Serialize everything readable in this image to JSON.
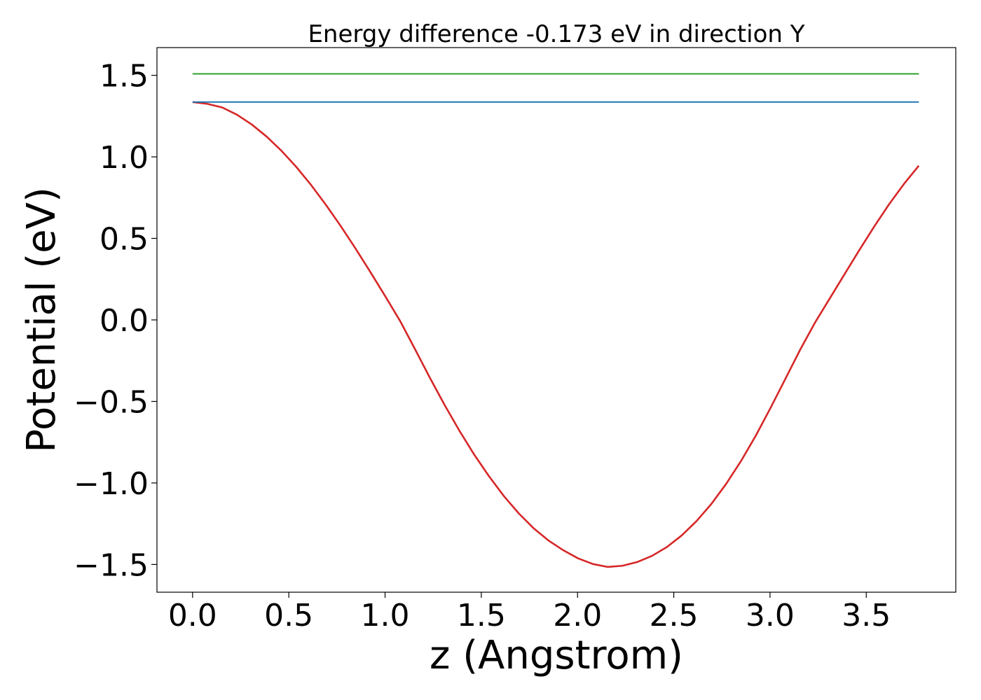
{
  "chart_data": {
    "type": "line",
    "title": "Energy difference -0.173 eV in direction Y",
    "xlabel": "z (Angstrom)",
    "ylabel": "Potential (eV)",
    "xlim": [
      -0.185,
      3.965
    ],
    "ylim": [
      -1.67,
      1.67
    ],
    "xticks": [
      0.0,
      0.5,
      1.0,
      1.5,
      2.0,
      2.5,
      3.0,
      3.5
    ],
    "xtick_labels": [
      "0.0",
      "0.5",
      "1.0",
      "1.5",
      "2.0",
      "2.5",
      "3.0",
      "3.5"
    ],
    "yticks": [
      1.5,
      1.0,
      0.5,
      0.0,
      -0.5,
      -1.0,
      -1.5
    ],
    "ytick_labels": [
      "1.5",
      "1.0",
      "0.5",
      "0.0",
      "−0.5",
      "−1.0",
      "−1.5"
    ],
    "grid": false,
    "series": [
      {
        "color": "#d62728",
        "x": [
          0.0,
          0.077,
          0.154,
          0.231,
          0.308,
          0.385,
          0.462,
          0.539,
          0.616,
          0.693,
          0.77,
          0.847,
          0.924,
          1.001,
          1.078,
          1.155,
          1.232,
          1.309,
          1.386,
          1.463,
          1.54,
          1.617,
          1.694,
          1.771,
          1.848,
          1.925,
          2.002,
          2.079,
          2.156,
          2.233,
          2.31,
          2.387,
          2.464,
          2.541,
          2.618,
          2.695,
          2.772,
          2.849,
          2.926,
          3.003,
          3.08,
          3.157,
          3.234,
          3.311,
          3.388,
          3.465,
          3.542,
          3.619,
          3.696,
          3.773
        ],
        "y": [
          1.336,
          1.325,
          1.303,
          1.258,
          1.198,
          1.124,
          1.037,
          0.938,
          0.827,
          0.705,
          0.575,
          0.437,
          0.293,
          0.145,
          -0.006,
          -0.178,
          -0.353,
          -0.521,
          -0.679,
          -0.826,
          -0.959,
          -1.08,
          -1.186,
          -1.277,
          -1.352,
          -1.412,
          -1.462,
          -1.497,
          -1.515,
          -1.508,
          -1.485,
          -1.447,
          -1.393,
          -1.322,
          -1.234,
          -1.129,
          -1.006,
          -0.866,
          -0.71,
          -0.539,
          -0.361,
          -0.182,
          -0.016,
          0.133,
          0.282,
          0.43,
          0.574,
          0.71,
          0.834,
          0.946
        ]
      },
      {
        "color": "#2ca02c",
        "x": [
          0.0,
          3.773
        ],
        "y": [
          1.509,
          1.509
        ]
      },
      {
        "color": "#1f77b4",
        "x": [
          0.0,
          3.773
        ],
        "y": [
          1.336,
          1.336
        ]
      }
    ]
  }
}
